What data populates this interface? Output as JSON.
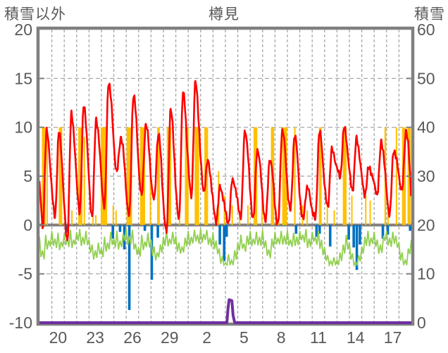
{
  "chart_data": {
    "type": "line",
    "title": "樽見",
    "left_axis": {
      "label": "積雪以外",
      "min": -10,
      "max": 20,
      "ticks": [
        20,
        15,
        10,
        5,
        0,
        -5,
        -10
      ]
    },
    "right_axis": {
      "label": "積雪",
      "min": 0,
      "max": 60,
      "ticks": [
        60,
        50,
        40,
        30,
        20,
        10,
        0
      ]
    },
    "x_axis": {
      "days": 30,
      "tick_labels": [
        "20",
        "23",
        "26",
        "29",
        "2",
        "5",
        "8",
        "11",
        "14",
        "17"
      ],
      "tick_positions": [
        1.5,
        4.5,
        7.5,
        10.5,
        13.5,
        16.5,
        19.5,
        22.5,
        25.5,
        28.5
      ],
      "gridline_every_days": 1
    },
    "colors": {
      "temperature": "#ff0000",
      "sunshine": "#ffc000",
      "precipitation": "#0070c0",
      "green_line": "#92d050",
      "snow_depth": "#7030a0",
      "frame": "#808080",
      "grid": "#a0a0a0",
      "text": "#595959"
    },
    "series": [
      {
        "name": "temperature",
        "type": "line",
        "axis": "left",
        "color": "#ff0000",
        "daily_max": [
          9.5,
          9.5,
          11.3,
          12.3,
          10.8,
          14.7,
          9.0,
          13.4,
          10.3,
          9.3,
          11.7,
          13.5,
          14.5,
          6.5,
          3.8,
          4.7,
          9.7,
          7.8,
          6.8,
          9.8,
          9.2,
          3.8,
          9.5,
          7.6,
          9.9,
          8.7,
          5.9,
          8.5,
          7.7,
          9.7
        ],
        "daily_min": [
          -0.5,
          1.0,
          -1.5,
          1.5,
          1.0,
          2.0,
          5.5,
          1.0,
          3.0,
          2.5,
          -0.8,
          0.5,
          3.0,
          3.5,
          0.5,
          0.3,
          1.0,
          0.7,
          0.5,
          0.0,
          1.5,
          0.5,
          0.6,
          1.8,
          5.0,
          3.6,
          3.2,
          3.3,
          1.2,
          3.7
        ],
        "final_min": -0.5
      },
      {
        "name": "sunshine",
        "type": "bar",
        "axis": "left",
        "color": "#ffc000",
        "bars": [
          [
            0.35,
            10,
            0.3
          ],
          [
            0.62,
            9,
            0.1
          ],
          [
            1.7,
            10,
            0.28
          ],
          [
            2.35,
            3,
            0.08
          ],
          [
            2.62,
            1.5,
            0.06
          ],
          [
            3.3,
            10,
            0.34
          ],
          [
            3.62,
            9,
            0.1
          ],
          [
            4.32,
            2,
            0.07
          ],
          [
            4.55,
            1,
            0.05
          ],
          [
            5.2,
            10,
            0.52
          ],
          [
            5.95,
            2,
            0.06
          ],
          [
            6.18,
            1.5,
            0.05
          ],
          [
            7.25,
            10,
            0.44
          ],
          [
            8.32,
            10,
            0.4
          ],
          [
            8.95,
            5,
            0.08
          ],
          [
            9.6,
            10,
            0.22
          ],
          [
            10.45,
            10,
            0.36
          ],
          [
            11.3,
            2,
            0.06
          ],
          [
            11.88,
            10,
            0.3
          ],
          [
            12.7,
            10,
            0.36
          ],
          [
            13.45,
            10,
            0.3
          ],
          [
            14.45,
            5.5,
            0.08
          ],
          [
            14.92,
            3,
            0.06
          ],
          [
            15.55,
            2,
            0.06
          ],
          [
            16.15,
            1.5,
            0.06
          ],
          [
            16.82,
            2,
            0.06
          ],
          [
            17.42,
            10,
            0.3
          ],
          [
            17.95,
            3,
            0.06
          ],
          [
            18.8,
            10,
            0.26
          ],
          [
            19.3,
            2,
            0.05
          ],
          [
            19.78,
            10,
            0.4
          ],
          [
            20.6,
            10,
            0.12
          ],
          [
            21.22,
            2,
            0.06
          ],
          [
            21.6,
            1.5,
            0.05
          ],
          [
            22.65,
            10,
            0.22
          ],
          [
            23.22,
            2,
            0.05
          ],
          [
            23.78,
            1.5,
            0.05
          ],
          [
            24.62,
            10,
            0.3
          ],
          [
            25.2,
            3,
            0.06
          ],
          [
            26.32,
            3,
            0.06
          ],
          [
            26.68,
            2.5,
            0.06
          ],
          [
            27.9,
            10,
            0.14
          ],
          [
            28.12,
            2,
            0.06
          ],
          [
            28.8,
            10,
            0.1
          ],
          [
            29.4,
            10,
            0.3
          ],
          [
            29.82,
            10,
            0.26
          ]
        ]
      },
      {
        "name": "precipitation",
        "type": "bar-down",
        "axis": "left",
        "color": "#0070c0",
        "bars": [
          [
            2.25,
            -0.8
          ],
          [
            5.92,
            -1.4
          ],
          [
            6.5,
            -0.7
          ],
          [
            6.85,
            -2.5
          ],
          [
            7.25,
            -8.7
          ],
          [
            8.5,
            -0.6
          ],
          [
            9.06,
            -5.6
          ],
          [
            9.55,
            -1.3
          ],
          [
            14.55,
            -2.0
          ],
          [
            14.9,
            -3.7
          ],
          [
            15.1,
            -1.2
          ],
          [
            20.7,
            -0.9
          ],
          [
            22.35,
            -1.2
          ],
          [
            22.6,
            -0.9
          ],
          [
            23.45,
            -2.2
          ],
          [
            24.95,
            -1.5
          ],
          [
            25.35,
            -2.3
          ],
          [
            25.6,
            -4.6
          ],
          [
            25.85,
            -2.0
          ],
          [
            27.7,
            -1.4
          ],
          [
            28.1,
            -1.0
          ],
          [
            29.9,
            -0.6
          ]
        ]
      },
      {
        "name": "green_line",
        "type": "line",
        "axis": "left",
        "color": "#92d050",
        "step": 0.25,
        "values": [
          -1.2,
          -2.6,
          -1.0,
          -1.6,
          -0.6,
          -1.4,
          -0.8,
          -1.7,
          -0.9,
          -1.3,
          -0.5,
          -1.5,
          -0.8,
          -0.4,
          -1.2,
          -0.6,
          -1.5,
          -2.0,
          -2.6,
          -1.8,
          -2.4,
          -1.2,
          -1.8,
          -0.7,
          -1.4,
          -0.6,
          -1.6,
          -0.9,
          -0.4,
          -1.1,
          -0.5,
          -1.9,
          -2.3,
          -1.0,
          -1.7,
          -0.8,
          -1.5,
          -2.2,
          -2.8,
          -2.0,
          -1.2,
          -0.6,
          -1.4,
          -0.7,
          -1.1,
          -1.8,
          -2.2,
          -1.3,
          -0.6,
          -1.2,
          -0.5,
          -1.0,
          -0.4,
          -0.9,
          -0.5,
          -1.3,
          -0.8,
          -1.6,
          -2.4,
          -3.2,
          -3.9,
          -3.0,
          -3.6,
          -2.6,
          -1.8,
          -1.0,
          -1.9,
          -1.1,
          -0.6,
          -1.4,
          -0.7,
          -1.2,
          -0.5,
          -1.6,
          -2.5,
          -1.4,
          -0.7,
          -1.3,
          -0.6,
          -1.1,
          -0.5,
          -1.5,
          -0.8,
          -1.2,
          -0.6,
          -1.0,
          -0.4,
          -1.4,
          -0.7,
          -1.2,
          -0.6,
          -1.5,
          -2.3,
          -3.1,
          -3.7,
          -3.3,
          -3.6,
          -2.8,
          -2.0,
          -1.0,
          -1.8,
          -2.9,
          -3.8,
          -3.1,
          -2.2,
          -1.2,
          -0.6,
          -1.3,
          -0.7,
          -1.5,
          -2.0,
          -1.1,
          -0.6,
          -1.3,
          -0.7,
          -1.1,
          -1.8,
          -2.8,
          -3.6,
          -2.4,
          -1.5
        ]
      },
      {
        "name": "snow_depth",
        "type": "line",
        "axis": "right",
        "color": "#7030a0",
        "points": [
          [
            0,
            0
          ],
          [
            15.12,
            0
          ],
          [
            15.22,
            3.2
          ],
          [
            15.3,
            4.7
          ],
          [
            15.52,
            4.5
          ],
          [
            15.62,
            1.5
          ],
          [
            15.75,
            0
          ],
          [
            30,
            0
          ]
        ]
      }
    ]
  }
}
